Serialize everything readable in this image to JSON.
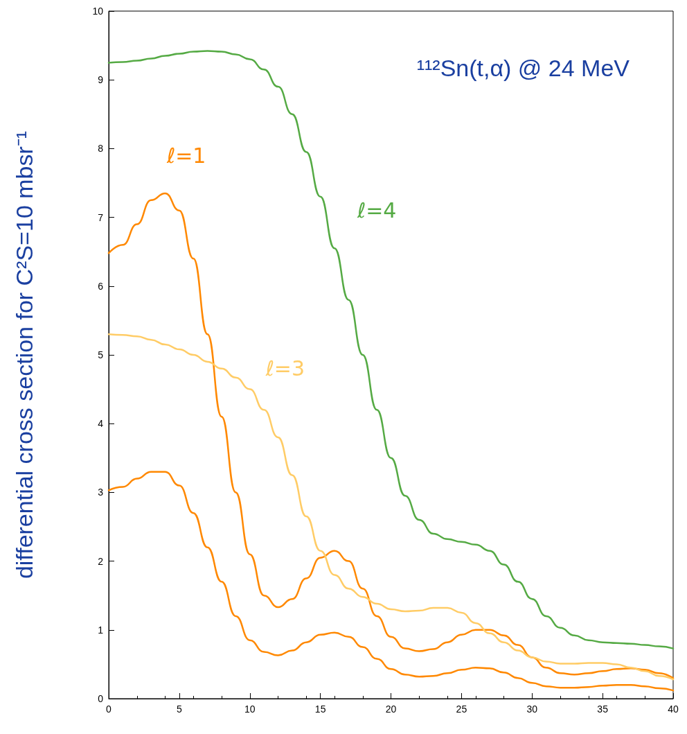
{
  "chart_data": {
    "type": "line",
    "title": "¹¹²Sn(t,α) @ 24 MeV",
    "ylabel": "differential cross section for C²S=10 mbsr⁻¹",
    "xlim": [
      0,
      40
    ],
    "xticks": [
      0,
      5,
      10,
      15,
      20,
      25,
      30,
      35,
      40
    ],
    "ylim": [
      0,
      10
    ],
    "yticks": [
      0,
      1,
      2,
      3,
      4,
      5,
      6,
      7,
      8,
      9,
      10
    ],
    "grid": false,
    "legend": false,
    "marker": "none",
    "line_style": "solid",
    "x": [
      0,
      1,
      2,
      3,
      4,
      5,
      6,
      7,
      8,
      9,
      10,
      11,
      12,
      13,
      14,
      15,
      16,
      17,
      18,
      19,
      20,
      21,
      22,
      23,
      24,
      25,
      26,
      27,
      28,
      29,
      30,
      31,
      32,
      33,
      34,
      35,
      36,
      37,
      38,
      39,
      40
    ],
    "series": [
      {
        "name": "ℓ=4",
        "color": "#55aa44",
        "values": [
          9.25,
          9.26,
          9.28,
          9.31,
          9.35,
          9.38,
          9.41,
          9.42,
          9.41,
          9.37,
          9.3,
          9.15,
          8.9,
          8.5,
          7.95,
          7.3,
          6.55,
          5.8,
          5.0,
          4.2,
          3.5,
          2.95,
          2.6,
          2.4,
          2.32,
          2.28,
          2.24,
          2.15,
          1.95,
          1.7,
          1.45,
          1.2,
          1.03,
          0.92,
          0.85,
          0.82,
          0.81,
          0.8,
          0.78,
          0.76,
          0.73
        ]
      },
      {
        "name": "ℓ=1",
        "color": "#ff8800",
        "values": [
          6.48,
          6.6,
          6.9,
          7.25,
          7.35,
          7.1,
          6.4,
          5.3,
          4.1,
          3.0,
          2.1,
          1.5,
          1.33,
          1.45,
          1.75,
          2.05,
          2.15,
          2.0,
          1.6,
          1.2,
          0.9,
          0.73,
          0.69,
          0.72,
          0.82,
          0.93,
          1.0,
          1.0,
          0.92,
          0.78,
          0.6,
          0.45,
          0.37,
          0.35,
          0.37,
          0.4,
          0.43,
          0.44,
          0.42,
          0.37,
          0.3
        ]
      },
      {
        "name": "ℓ=3",
        "color": "#ffcc66",
        "values": [
          5.3,
          5.29,
          5.27,
          5.22,
          5.15,
          5.08,
          5.0,
          4.9,
          4.8,
          4.67,
          4.5,
          4.2,
          3.8,
          3.25,
          2.65,
          2.15,
          1.8,
          1.6,
          1.48,
          1.38,
          1.3,
          1.27,
          1.28,
          1.32,
          1.32,
          1.25,
          1.1,
          0.95,
          0.82,
          0.7,
          0.6,
          0.54,
          0.51,
          0.51,
          0.52,
          0.52,
          0.5,
          0.45,
          0.4,
          0.33,
          0.28
        ]
      },
      {
        "color": "#ff8800",
        "values": [
          3.03,
          3.08,
          3.2,
          3.3,
          3.3,
          3.1,
          2.7,
          2.2,
          1.7,
          1.2,
          0.85,
          0.68,
          0.63,
          0.7,
          0.82,
          0.93,
          0.96,
          0.9,
          0.75,
          0.58,
          0.43,
          0.35,
          0.32,
          0.33,
          0.37,
          0.42,
          0.45,
          0.44,
          0.38,
          0.3,
          0.23,
          0.18,
          0.16,
          0.16,
          0.17,
          0.19,
          0.2,
          0.2,
          0.18,
          0.15,
          0.12
        ]
      }
    ]
  }
}
